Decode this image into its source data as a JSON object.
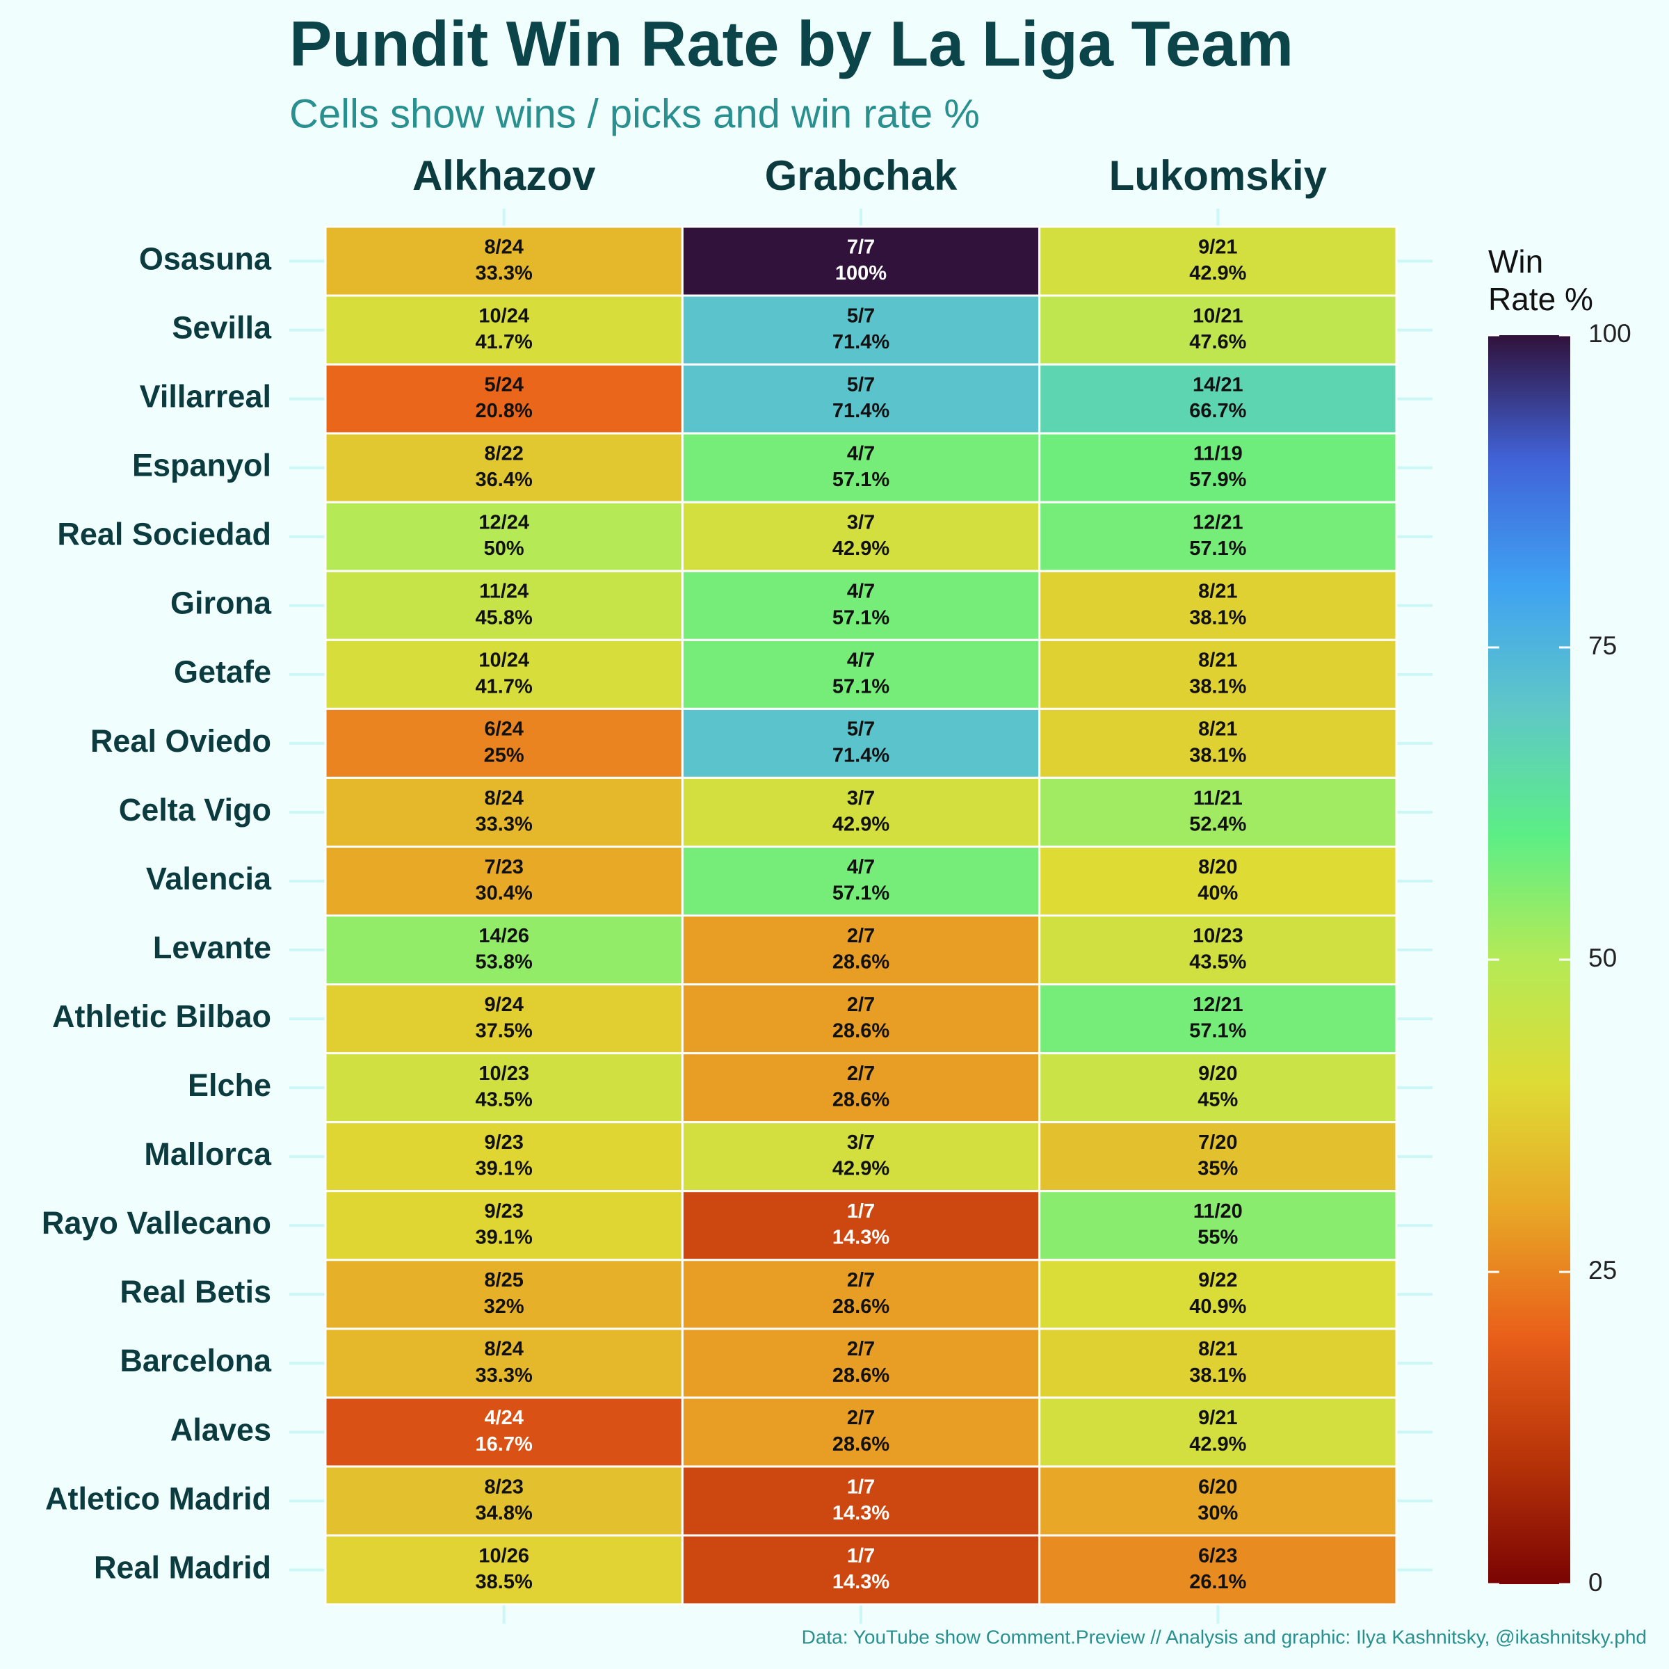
{
  "chart_data": {
    "type": "heatmap",
    "title": "Pundit Win Rate by La Liga Team",
    "subtitle": "Cells show wins / picks and win rate %",
    "caption": "Data: YouTube show Comment.Preview // Analysis and graphic: Ilya Kashnitsky, @ikashnitsky.phd",
    "categories": [
      "Osasuna",
      "Sevilla",
      "Villarreal",
      "Espanyol",
      "Real Sociedad",
      "Girona",
      "Getafe",
      "Real Oviedo",
      "Celta Vigo",
      "Valencia",
      "Levante",
      "Athletic Bilbao",
      "Elche",
      "Mallorca",
      "Rayo Vallecano",
      "Real Betis",
      "Barcelona",
      "Alaves",
      "Atletico Madrid",
      "Real Madrid"
    ],
    "series": [
      {
        "name": "Alkhazov",
        "values": [
          33.3,
          41.7,
          20.8,
          36.4,
          50,
          45.8,
          41.7,
          25,
          33.3,
          30.4,
          53.8,
          37.5,
          43.5,
          39.1,
          39.1,
          32,
          33.3,
          16.7,
          34.8,
          38.5
        ],
        "value_labels": [
          "33.3%",
          "41.7%",
          "20.8%",
          "36.4%",
          "50%",
          "45.8%",
          "41.7%",
          "25%",
          "33.3%",
          "30.4%",
          "53.8%",
          "37.5%",
          "43.5%",
          "39.1%",
          "39.1%",
          "32%",
          "33.3%",
          "16.7%",
          "34.8%",
          "38.5%"
        ],
        "fraction_labels": [
          "8/24",
          "10/24",
          "5/24",
          "8/22",
          "12/24",
          "11/24",
          "10/24",
          "6/24",
          "8/24",
          "7/23",
          "14/26",
          "9/24",
          "10/23",
          "9/23",
          "9/23",
          "8/25",
          "8/24",
          "4/24",
          "8/23",
          "10/26"
        ]
      },
      {
        "name": "Grabchak",
        "values": [
          100,
          71.4,
          71.4,
          57.1,
          42.9,
          57.1,
          57.1,
          71.4,
          42.9,
          57.1,
          28.6,
          28.6,
          28.6,
          42.9,
          14.3,
          28.6,
          28.6,
          28.6,
          14.3,
          14.3
        ],
        "value_labels": [
          "100%",
          "71.4%",
          "71.4%",
          "57.1%",
          "42.9%",
          "57.1%",
          "57.1%",
          "71.4%",
          "42.9%",
          "57.1%",
          "28.6%",
          "28.6%",
          "28.6%",
          "42.9%",
          "14.3%",
          "28.6%",
          "28.6%",
          "28.6%",
          "14.3%",
          "14.3%"
        ],
        "fraction_labels": [
          "7/7",
          "5/7",
          "5/7",
          "4/7",
          "3/7",
          "4/7",
          "4/7",
          "5/7",
          "3/7",
          "4/7",
          "2/7",
          "2/7",
          "2/7",
          "3/7",
          "1/7",
          "2/7",
          "2/7",
          "2/7",
          "1/7",
          "1/7"
        ]
      },
      {
        "name": "Lukomskiy",
        "values": [
          42.9,
          47.6,
          66.7,
          57.9,
          57.1,
          38.1,
          38.1,
          38.1,
          52.4,
          40,
          43.5,
          57.1,
          45,
          35,
          55,
          40.9,
          38.1,
          42.9,
          30,
          26.1
        ],
        "value_labels": [
          "42.9%",
          "47.6%",
          "66.7%",
          "57.9%",
          "57.1%",
          "38.1%",
          "38.1%",
          "38.1%",
          "52.4%",
          "40%",
          "43.5%",
          "57.1%",
          "45%",
          "35%",
          "55%",
          "40.9%",
          "38.1%",
          "42.9%",
          "30%",
          "26.1%"
        ],
        "fraction_labels": [
          "9/21",
          "10/21",
          "14/21",
          "11/19",
          "12/21",
          "8/21",
          "8/21",
          "8/21",
          "11/21",
          "8/20",
          "10/23",
          "12/21",
          "9/20",
          "7/20",
          "11/20",
          "9/22",
          "8/21",
          "9/21",
          "6/20",
          "6/23"
        ]
      }
    ],
    "colorbar": {
      "title": [
        "Win",
        "Rate %"
      ],
      "lim": [
        0,
        100
      ],
      "ticks": [
        0,
        25,
        50,
        75,
        100
      ],
      "colors": [
        "#7a0403",
        "#b83409",
        "#e9601a",
        "#e8a726",
        "#dedb35",
        "#b5ea56",
        "#5cee86",
        "#5fc8c6",
        "#3fa2f2",
        "#4163d8",
        "#30123b"
      ]
    }
  }
}
